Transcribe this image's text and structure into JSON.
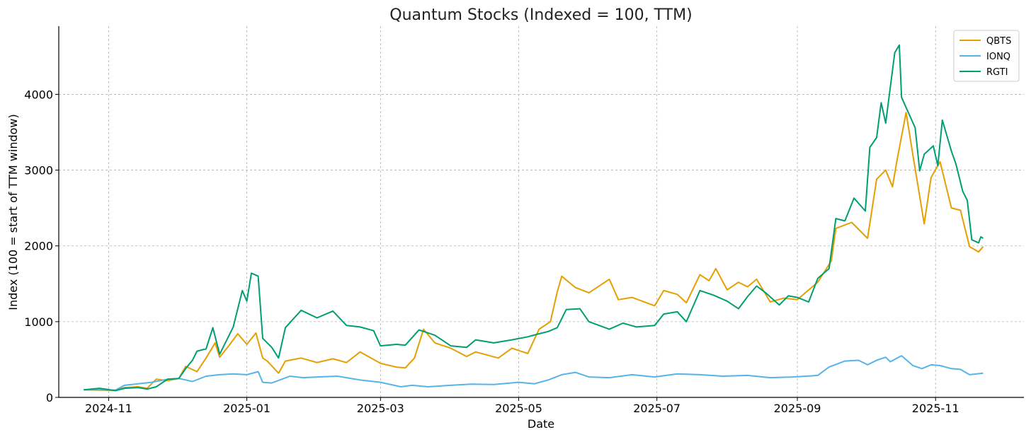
{
  "chart_data": {
    "type": "line",
    "title": "Quantum Stocks (Indexed = 100, TTM)",
    "xlabel": "Date",
    "ylabel": "Index (100 = start of TTM window)",
    "xlim": [
      "2024-10-10",
      "2025-12-10"
    ],
    "ylim": [
      0,
      4900
    ],
    "yticks": [
      0,
      1000,
      2000,
      3000,
      4000
    ],
    "xticks": [
      "2024-11-01",
      "2025-01-01",
      "2025-03-01",
      "2025-05-01",
      "2025-07-01",
      "2025-09-01",
      "2025-11-01"
    ],
    "xtick_labels": [
      "2024-11",
      "2025-01",
      "2025-03",
      "2025-05",
      "2025-07",
      "2025-09",
      "2025-11"
    ],
    "grid": true,
    "legend_position": "top-right",
    "series": [
      {
        "name": "QBTS",
        "color": "#E69F00",
        "points": [
          [
            "2024-10-21",
            100
          ],
          [
            "2024-10-28",
            95
          ],
          [
            "2024-11-04",
            90
          ],
          [
            "2024-11-08",
            130
          ],
          [
            "2024-11-14",
            140
          ],
          [
            "2024-11-18",
            120
          ],
          [
            "2024-11-22",
            240
          ],
          [
            "2024-11-27",
            220
          ],
          [
            "2024-12-02",
            250
          ],
          [
            "2024-12-05",
            410
          ],
          [
            "2024-12-10",
            340
          ],
          [
            "2024-12-14",
            520
          ],
          [
            "2024-12-18",
            720
          ],
          [
            "2024-12-20",
            530
          ],
          [
            "2024-12-24",
            680
          ],
          [
            "2024-12-28",
            840
          ],
          [
            "2025-01-01",
            700
          ],
          [
            "2025-01-05",
            850
          ],
          [
            "2025-01-08",
            520
          ],
          [
            "2025-01-10",
            480
          ],
          [
            "2025-01-15",
            320
          ],
          [
            "2025-01-18",
            480
          ],
          [
            "2025-01-25",
            520
          ],
          [
            "2025-02-01",
            460
          ],
          [
            "2025-02-08",
            510
          ],
          [
            "2025-02-14",
            460
          ],
          [
            "2025-02-20",
            600
          ],
          [
            "2025-02-26",
            500
          ],
          [
            "2025-03-01",
            450
          ],
          [
            "2025-03-08",
            400
          ],
          [
            "2025-03-12",
            390
          ],
          [
            "2025-03-16",
            520
          ],
          [
            "2025-03-20",
            900
          ],
          [
            "2025-03-25",
            720
          ],
          [
            "2025-04-01",
            650
          ],
          [
            "2025-04-08",
            540
          ],
          [
            "2025-04-12",
            600
          ],
          [
            "2025-04-22",
            520
          ],
          [
            "2025-04-28",
            650
          ],
          [
            "2025-05-05",
            580
          ],
          [
            "2025-05-10",
            900
          ],
          [
            "2025-05-15",
            1000
          ],
          [
            "2025-05-18",
            1390
          ],
          [
            "2025-05-20",
            1600
          ],
          [
            "2025-05-26",
            1450
          ],
          [
            "2025-06-01",
            1380
          ],
          [
            "2025-06-10",
            1560
          ],
          [
            "2025-06-14",
            1290
          ],
          [
            "2025-06-20",
            1320
          ],
          [
            "2025-06-30",
            1210
          ],
          [
            "2025-07-04",
            1410
          ],
          [
            "2025-07-10",
            1360
          ],
          [
            "2025-07-14",
            1250
          ],
          [
            "2025-07-20",
            1620
          ],
          [
            "2025-07-24",
            1540
          ],
          [
            "2025-07-27",
            1700
          ],
          [
            "2025-08-01",
            1420
          ],
          [
            "2025-08-06",
            1520
          ],
          [
            "2025-08-10",
            1460
          ],
          [
            "2025-08-14",
            1560
          ],
          [
            "2025-08-20",
            1260
          ],
          [
            "2025-08-26",
            1310
          ],
          [
            "2025-09-01",
            1290
          ],
          [
            "2025-09-10",
            1520
          ],
          [
            "2025-09-16",
            1800
          ],
          [
            "2025-09-18",
            2230
          ],
          [
            "2025-09-25",
            2310
          ],
          [
            "2025-10-02",
            2100
          ],
          [
            "2025-10-06",
            2880
          ],
          [
            "2025-10-10",
            3000
          ],
          [
            "2025-10-13",
            2780
          ],
          [
            "2025-10-15",
            3130
          ],
          [
            "2025-10-19",
            3760
          ],
          [
            "2025-10-22",
            3200
          ],
          [
            "2025-10-27",
            2290
          ],
          [
            "2025-10-30",
            2900
          ],
          [
            "2025-11-03",
            3110
          ],
          [
            "2025-11-08",
            2500
          ],
          [
            "2025-11-12",
            2470
          ],
          [
            "2025-11-16",
            1990
          ],
          [
            "2025-11-20",
            1920
          ],
          [
            "2025-11-22",
            1990
          ]
        ]
      },
      {
        "name": "IONQ",
        "color": "#56B4E9",
        "points": [
          [
            "2024-10-21",
            100
          ],
          [
            "2024-10-28",
            100
          ],
          [
            "2024-11-04",
            95
          ],
          [
            "2024-11-08",
            160
          ],
          [
            "2024-11-14",
            180
          ],
          [
            "2024-11-20",
            200
          ],
          [
            "2024-11-27",
            240
          ],
          [
            "2024-12-02",
            250
          ],
          [
            "2024-12-08",
            210
          ],
          [
            "2024-12-14",
            280
          ],
          [
            "2024-12-20",
            300
          ],
          [
            "2024-12-26",
            310
          ],
          [
            "2025-01-01",
            300
          ],
          [
            "2025-01-06",
            340
          ],
          [
            "2025-01-08",
            200
          ],
          [
            "2025-01-12",
            190
          ],
          [
            "2025-01-20",
            280
          ],
          [
            "2025-01-26",
            260
          ],
          [
            "2025-02-01",
            270
          ],
          [
            "2025-02-10",
            280
          ],
          [
            "2025-02-20",
            230
          ],
          [
            "2025-03-01",
            200
          ],
          [
            "2025-03-10",
            140
          ],
          [
            "2025-03-15",
            160
          ],
          [
            "2025-03-22",
            140
          ],
          [
            "2025-04-01",
            160
          ],
          [
            "2025-04-10",
            175
          ],
          [
            "2025-04-20",
            170
          ],
          [
            "2025-05-01",
            200
          ],
          [
            "2025-05-08",
            180
          ],
          [
            "2025-05-14",
            230
          ],
          [
            "2025-05-20",
            300
          ],
          [
            "2025-05-26",
            330
          ],
          [
            "2025-06-01",
            270
          ],
          [
            "2025-06-10",
            260
          ],
          [
            "2025-06-20",
            300
          ],
          [
            "2025-06-30",
            270
          ],
          [
            "2025-07-10",
            310
          ],
          [
            "2025-07-20",
            300
          ],
          [
            "2025-07-30",
            280
          ],
          [
            "2025-08-10",
            290
          ],
          [
            "2025-08-20",
            260
          ],
          [
            "2025-08-30",
            270
          ],
          [
            "2025-09-05",
            280
          ],
          [
            "2025-09-10",
            290
          ],
          [
            "2025-09-15",
            400
          ],
          [
            "2025-09-22",
            480
          ],
          [
            "2025-09-28",
            490
          ],
          [
            "2025-10-02",
            430
          ],
          [
            "2025-10-06",
            490
          ],
          [
            "2025-10-10",
            530
          ],
          [
            "2025-10-12",
            470
          ],
          [
            "2025-10-17",
            550
          ],
          [
            "2025-10-22",
            420
          ],
          [
            "2025-10-26",
            380
          ],
          [
            "2025-10-30",
            430
          ],
          [
            "2025-11-03",
            420
          ],
          [
            "2025-11-08",
            380
          ],
          [
            "2025-11-12",
            370
          ],
          [
            "2025-11-16",
            300
          ],
          [
            "2025-11-22",
            320
          ]
        ]
      },
      {
        "name": "RGTI",
        "color": "#009E73",
        "points": [
          [
            "2024-10-21",
            100
          ],
          [
            "2024-10-28",
            120
          ],
          [
            "2024-11-04",
            90
          ],
          [
            "2024-11-08",
            120
          ],
          [
            "2024-11-14",
            130
          ],
          [
            "2024-11-18",
            110
          ],
          [
            "2024-11-22",
            140
          ],
          [
            "2024-11-27",
            240
          ],
          [
            "2024-12-02",
            250
          ],
          [
            "2024-12-05",
            380
          ],
          [
            "2024-12-08",
            490
          ],
          [
            "2024-12-10",
            610
          ],
          [
            "2024-12-14",
            640
          ],
          [
            "2024-12-17",
            920
          ],
          [
            "2024-12-20",
            570
          ],
          [
            "2024-12-26",
            930
          ],
          [
            "2024-12-30",
            1410
          ],
          [
            "2025-01-01",
            1270
          ],
          [
            "2025-01-03",
            1640
          ],
          [
            "2025-01-06",
            1600
          ],
          [
            "2025-01-08",
            780
          ],
          [
            "2025-01-12",
            660
          ],
          [
            "2025-01-15",
            520
          ],
          [
            "2025-01-18",
            920
          ],
          [
            "2025-01-25",
            1150
          ],
          [
            "2025-02-01",
            1050
          ],
          [
            "2025-02-08",
            1140
          ],
          [
            "2025-02-14",
            950
          ],
          [
            "2025-02-20",
            930
          ],
          [
            "2025-02-26",
            880
          ],
          [
            "2025-03-01",
            680
          ],
          [
            "2025-03-08",
            700
          ],
          [
            "2025-03-12",
            690
          ],
          [
            "2025-03-18",
            890
          ],
          [
            "2025-03-25",
            820
          ],
          [
            "2025-04-01",
            680
          ],
          [
            "2025-04-08",
            660
          ],
          [
            "2025-04-12",
            760
          ],
          [
            "2025-04-20",
            720
          ],
          [
            "2025-04-28",
            760
          ],
          [
            "2025-05-05",
            800
          ],
          [
            "2025-05-10",
            840
          ],
          [
            "2025-05-14",
            870
          ],
          [
            "2025-05-18",
            920
          ],
          [
            "2025-05-22",
            1160
          ],
          [
            "2025-05-28",
            1170
          ],
          [
            "2025-06-01",
            1000
          ],
          [
            "2025-06-10",
            900
          ],
          [
            "2025-06-16",
            980
          ],
          [
            "2025-06-22",
            930
          ],
          [
            "2025-06-30",
            950
          ],
          [
            "2025-07-04",
            1100
          ],
          [
            "2025-07-10",
            1130
          ],
          [
            "2025-07-14",
            1000
          ],
          [
            "2025-07-20",
            1410
          ],
          [
            "2025-07-26",
            1350
          ],
          [
            "2025-08-01",
            1270
          ],
          [
            "2025-08-06",
            1170
          ],
          [
            "2025-08-10",
            1330
          ],
          [
            "2025-08-14",
            1470
          ],
          [
            "2025-08-18",
            1380
          ],
          [
            "2025-08-24",
            1220
          ],
          [
            "2025-08-28",
            1340
          ],
          [
            "2025-09-01",
            1320
          ],
          [
            "2025-09-06",
            1260
          ],
          [
            "2025-09-10",
            1570
          ],
          [
            "2025-09-15",
            1700
          ],
          [
            "2025-09-18",
            2360
          ],
          [
            "2025-09-22",
            2330
          ],
          [
            "2025-09-26",
            2630
          ],
          [
            "2025-10-01",
            2460
          ],
          [
            "2025-10-03",
            3300
          ],
          [
            "2025-10-06",
            3430
          ],
          [
            "2025-10-08",
            3890
          ],
          [
            "2025-10-10",
            3620
          ],
          [
            "2025-10-14",
            4550
          ],
          [
            "2025-10-16",
            4650
          ],
          [
            "2025-10-17",
            3960
          ],
          [
            "2025-10-23",
            3560
          ],
          [
            "2025-10-25",
            2990
          ],
          [
            "2025-10-27",
            3210
          ],
          [
            "2025-10-31",
            3320
          ],
          [
            "2025-11-02",
            3060
          ],
          [
            "2025-11-04",
            3660
          ],
          [
            "2025-11-08",
            3250
          ],
          [
            "2025-11-10",
            3080
          ],
          [
            "2025-11-13",
            2720
          ],
          [
            "2025-11-15",
            2600
          ],
          [
            "2025-11-17",
            2080
          ],
          [
            "2025-11-20",
            2040
          ],
          [
            "2025-11-21",
            2120
          ],
          [
            "2025-11-22",
            2100
          ]
        ]
      }
    ]
  }
}
